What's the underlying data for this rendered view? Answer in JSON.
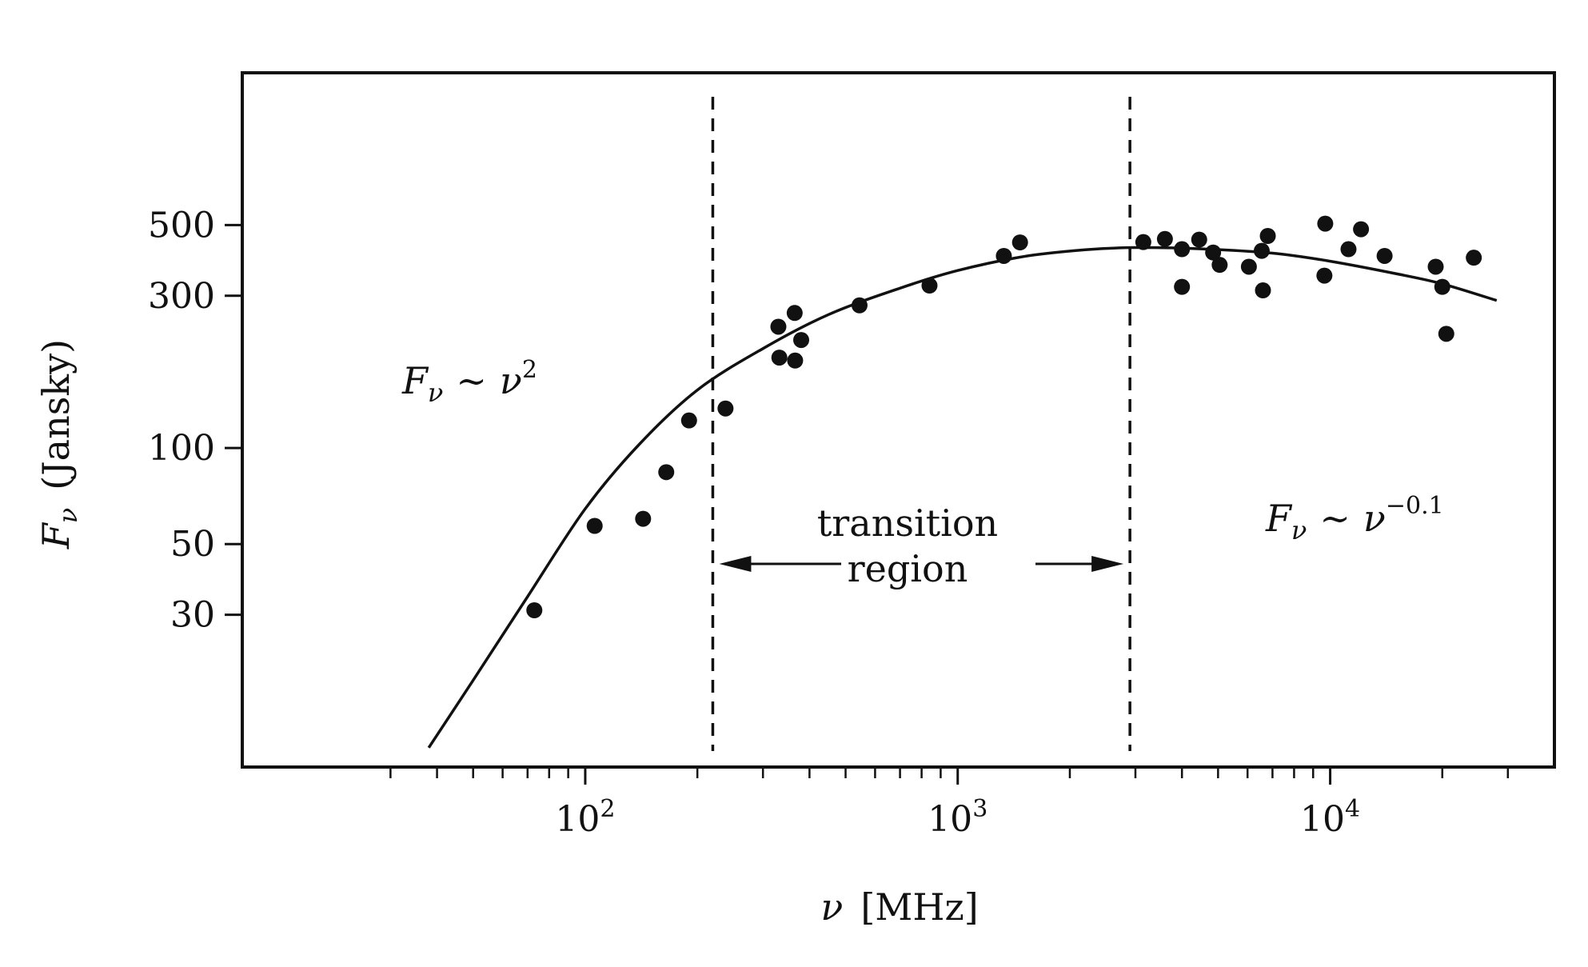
{
  "chart_data": {
    "type": "scatter",
    "title": "",
    "xlabel": {
      "main": "ν",
      "unit": "[MHz]"
    },
    "ylabel": {
      "main": "F",
      "sub": "ν",
      "unit": "(Jansky)"
    },
    "x_scale": "log",
    "y_scale": "log",
    "xlim": [
      12,
      40000
    ],
    "ylim": [
      10,
      1500
    ],
    "grid": false,
    "legend": "none",
    "x_ticks": [
      {
        "value": 100,
        "base": "10",
        "exp": "2"
      },
      {
        "value": 1000,
        "base": "10",
        "exp": "3"
      },
      {
        "value": 10000,
        "base": "10",
        "exp": "4"
      }
    ],
    "x_minor_ticks": [
      30,
      40,
      50,
      60,
      70,
      80,
      90,
      200,
      300,
      400,
      500,
      600,
      700,
      800,
      900,
      2000,
      3000,
      4000,
      5000,
      6000,
      7000,
      8000,
      9000,
      20000,
      30000
    ],
    "y_ticks": [
      {
        "value": 30,
        "label": "30"
      },
      {
        "value": 50,
        "label": "50"
      },
      {
        "value": 100,
        "label": "100"
      },
      {
        "value": 300,
        "label": "300"
      },
      {
        "value": 500,
        "label": "500"
      }
    ],
    "points": [
      {
        "x": 73,
        "y": 31
      },
      {
        "x": 106,
        "y": 57
      },
      {
        "x": 143,
        "y": 60
      },
      {
        "x": 165,
        "y": 84
      },
      {
        "x": 190,
        "y": 122
      },
      {
        "x": 238,
        "y": 133
      },
      {
        "x": 330,
        "y": 240
      },
      {
        "x": 332,
        "y": 192
      },
      {
        "x": 365,
        "y": 265
      },
      {
        "x": 366,
        "y": 188
      },
      {
        "x": 380,
        "y": 218
      },
      {
        "x": 545,
        "y": 280
      },
      {
        "x": 840,
        "y": 323
      },
      {
        "x": 1330,
        "y": 400
      },
      {
        "x": 1470,
        "y": 441
      },
      {
        "x": 3150,
        "y": 442
      },
      {
        "x": 3600,
        "y": 452
      },
      {
        "x": 4000,
        "y": 420
      },
      {
        "x": 4000,
        "y": 320
      },
      {
        "x": 4450,
        "y": 450
      },
      {
        "x": 4850,
        "y": 410
      },
      {
        "x": 5050,
        "y": 375
      },
      {
        "x": 6050,
        "y": 370
      },
      {
        "x": 6550,
        "y": 415
      },
      {
        "x": 6600,
        "y": 312
      },
      {
        "x": 6800,
        "y": 462
      },
      {
        "x": 9650,
        "y": 347
      },
      {
        "x": 9700,
        "y": 505
      },
      {
        "x": 11200,
        "y": 420
      },
      {
        "x": 12100,
        "y": 485
      },
      {
        "x": 14000,
        "y": 400
      },
      {
        "x": 19200,
        "y": 370
      },
      {
        "x": 20000,
        "y": 320
      },
      {
        "x": 20500,
        "y": 228
      },
      {
        "x": 24300,
        "y": 395
      }
    ],
    "fit_curve": [
      {
        "x": 38,
        "y": 11.5
      },
      {
        "x": 50,
        "y": 18.7
      },
      {
        "x": 70,
        "y": 34.2
      },
      {
        "x": 100,
        "y": 64.5
      },
      {
        "x": 140,
        "y": 103
      },
      {
        "x": 200,
        "y": 152
      },
      {
        "x": 300,
        "y": 205
      },
      {
        "x": 450,
        "y": 262
      },
      {
        "x": 700,
        "y": 317
      },
      {
        "x": 1000,
        "y": 360
      },
      {
        "x": 1500,
        "y": 398
      },
      {
        "x": 2200,
        "y": 418
      },
      {
        "x": 3000,
        "y": 425
      },
      {
        "x": 4500,
        "y": 421
      },
      {
        "x": 7000,
        "y": 408
      },
      {
        "x": 10000,
        "y": 385
      },
      {
        "x": 15000,
        "y": 352
      },
      {
        "x": 20000,
        "y": 327
      },
      {
        "x": 28000,
        "y": 290
      }
    ],
    "vertical_lines": [
      {
        "x": 220,
        "style": "dashed"
      },
      {
        "x": 2900,
        "style": "dashed"
      }
    ],
    "annotations": {
      "low_law": {
        "lhs": "F",
        "sub": "ν",
        "rel": "∼",
        "base": "ν",
        "exp": "2"
      },
      "high_law": {
        "lhs": "F",
        "sub": "ν",
        "rel": "∼",
        "base": "ν",
        "exp": "−0.1"
      },
      "transition": {
        "line1": "transition",
        "line2": "region"
      }
    }
  }
}
